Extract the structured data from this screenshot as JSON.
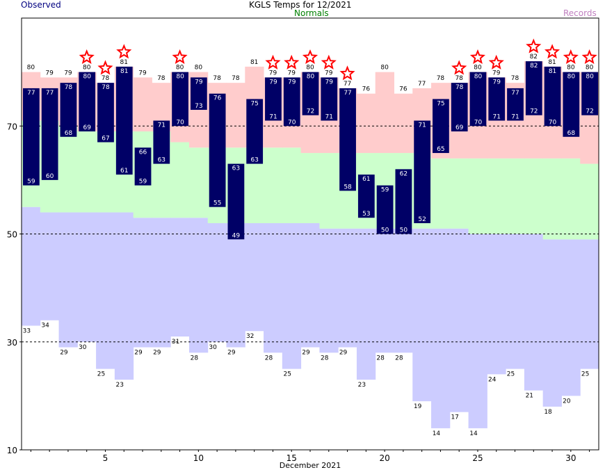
{
  "header": {
    "title": "KGLS Temps for 12/2021",
    "observed_label": "Observed",
    "normals_label": "Normals",
    "records_label": "Records"
  },
  "colors": {
    "observed_bar": "#000066",
    "record_range": "#ffcccc",
    "normal_range": "#ccffcc",
    "record_low": "#ccccff",
    "star": "#ff0000",
    "observed_text": "#000080",
    "normals_text": "#008000",
    "records_text": "#c080c0"
  },
  "chart_data": {
    "type": "bar",
    "title": "KGLS Temps for 12/2021",
    "xlabel": "December 2021",
    "ylabel": "",
    "x_range": [
      1,
      31
    ],
    "ylim": [
      10,
      90
    ],
    "x_ticks": [
      5,
      10,
      15,
      20,
      25,
      30
    ],
    "y_ticks": [
      10,
      30,
      50,
      70
    ],
    "gridlines_dashed_at": [
      30,
      50,
      70
    ],
    "legend": [
      "Observed",
      "Normals",
      "Records"
    ],
    "days": [
      1,
      2,
      3,
      4,
      5,
      6,
      7,
      8,
      9,
      10,
      11,
      12,
      13,
      14,
      15,
      16,
      17,
      18,
      19,
      20,
      21,
      22,
      23,
      24,
      25,
      26,
      27,
      28,
      29,
      30,
      31
    ],
    "series": [
      {
        "name": "Observed",
        "high": [
          77,
          77,
          78,
          80,
          78,
          81,
          66,
          71,
          80,
          79,
          76,
          63,
          75,
          79,
          79,
          80,
          79,
          77,
          61,
          59,
          62,
          71,
          75,
          78,
          80,
          79,
          77,
          82,
          81,
          80,
          80
        ],
        "low": [
          59,
          60,
          68,
          69,
          67,
          61,
          59,
          63,
          70,
          73,
          55,
          49,
          63,
          71,
          70,
          72,
          71,
          58,
          53,
          50,
          50,
          52,
          65,
          69,
          70,
          71,
          71,
          72,
          70,
          68,
          72
        ]
      },
      {
        "name": "Normals",
        "high": [
          71,
          71,
          70,
          69,
          69,
          69,
          69,
          69,
          67,
          66,
          66,
          66,
          66,
          66,
          66,
          65,
          65,
          65,
          65,
          65,
          65,
          65,
          64,
          64,
          64,
          64,
          64,
          64,
          64,
          64,
          63
        ],
        "low": [
          55,
          54,
          54,
          54,
          54,
          54,
          53,
          53,
          53,
          53,
          52,
          52,
          52,
          52,
          52,
          52,
          51,
          51,
          51,
          51,
          51,
          51,
          51,
          51,
          50,
          50,
          50,
          50,
          49,
          49,
          49
        ]
      },
      {
        "name": "Records",
        "high": [
          80,
          79,
          79,
          80,
          78,
          81,
          79,
          78,
          80,
          80,
          78,
          78,
          81,
          79,
          79,
          80,
          79,
          77,
          76,
          80,
          76,
          77,
          78,
          78,
          80,
          79,
          78,
          82,
          81,
          80,
          80
        ],
        "low": [
          33,
          34,
          29,
          30,
          25,
          23,
          29,
          29,
          31,
          28,
          30,
          29,
          32,
          28,
          25,
          29,
          28,
          29,
          23,
          28,
          28,
          19,
          14,
          17,
          14,
          24,
          25,
          21,
          18,
          20,
          25
        ]
      }
    ],
    "record_high_set": [
      4,
      5,
      6,
      9,
      14,
      15,
      16,
      17,
      18,
      24,
      25,
      26,
      28,
      29,
      30,
      31
    ]
  }
}
